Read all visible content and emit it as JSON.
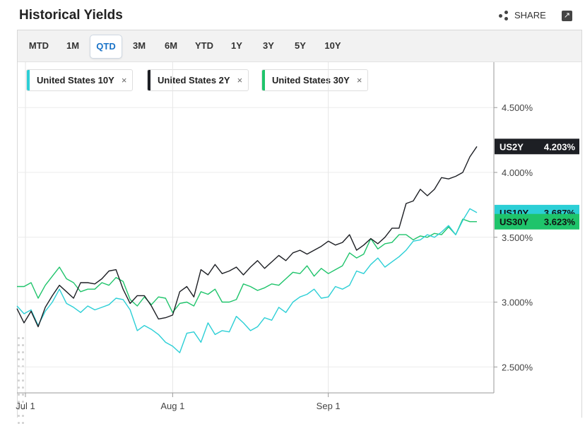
{
  "header": {
    "title": "Historical Yields",
    "share_label": "SHARE"
  },
  "tabs": [
    {
      "label": "MTD",
      "active": false
    },
    {
      "label": "1M",
      "active": false
    },
    {
      "label": "QTD",
      "active": true
    },
    {
      "label": "3M",
      "active": false
    },
    {
      "label": "6M",
      "active": false
    },
    {
      "label": "YTD",
      "active": false
    },
    {
      "label": "1Y",
      "active": false
    },
    {
      "label": "3Y",
      "active": false
    },
    {
      "label": "5Y",
      "active": false
    },
    {
      "label": "10Y",
      "active": false
    }
  ],
  "legend_chips": [
    {
      "label": "United States 10Y",
      "color": "#2ccfd6",
      "close": "×"
    },
    {
      "label": "United States 2Y",
      "color": "#1d1f24",
      "close": "×"
    },
    {
      "label": "United States 30Y",
      "color": "#1fc46b",
      "close": "×"
    }
  ],
  "chart_data": {
    "type": "line",
    "title": "Historical Yields",
    "x_ticks": [
      "Jul 1",
      "Aug 1",
      "Sep 1"
    ],
    "y_ticks": [
      "2.500%",
      "3.000%",
      "3.500%",
      "4.000%",
      "4.500%"
    ],
    "ylim": [
      2.3,
      4.85
    ],
    "grid": true,
    "series": [
      {
        "name": "US2Y",
        "color": "#1d1f24",
        "last_label": "4.203%",
        "values": [
          2.95,
          2.84,
          2.93,
          2.81,
          2.96,
          3.05,
          3.13,
          3.08,
          3.03,
          3.15,
          3.15,
          3.14,
          3.18,
          3.24,
          3.25,
          3.1,
          2.99,
          3.05,
          3.05,
          2.97,
          2.87,
          2.88,
          2.9,
          3.08,
          3.12,
          3.04,
          3.25,
          3.21,
          3.29,
          3.22,
          3.24,
          3.27,
          3.21,
          3.27,
          3.32,
          3.26,
          3.31,
          3.36,
          3.32,
          3.38,
          3.4,
          3.37,
          3.4,
          3.43,
          3.47,
          3.44,
          3.46,
          3.52,
          3.4,
          3.44,
          3.49,
          3.45,
          3.5,
          3.57,
          3.57,
          3.76,
          3.78,
          3.87,
          3.82,
          3.87,
          3.96,
          3.95,
          3.97,
          4.0,
          4.12,
          4.2
        ]
      },
      {
        "name": "US10Y",
        "color": "#2ccfd6",
        "last_label": "3.687%",
        "values": [
          2.97,
          2.91,
          2.94,
          2.82,
          2.93,
          3.0,
          3.1,
          2.99,
          2.96,
          2.92,
          2.97,
          2.94,
          2.96,
          2.98,
          3.03,
          3.02,
          2.94,
          2.78,
          2.82,
          2.79,
          2.75,
          2.69,
          2.66,
          2.61,
          2.76,
          2.77,
          2.69,
          2.84,
          2.75,
          2.78,
          2.77,
          2.89,
          2.84,
          2.78,
          2.81,
          2.88,
          2.86,
          2.96,
          2.92,
          3.0,
          3.04,
          3.06,
          3.1,
          3.03,
          3.04,
          3.12,
          3.1,
          3.13,
          3.24,
          3.22,
          3.29,
          3.34,
          3.27,
          3.31,
          3.35,
          3.4,
          3.47,
          3.48,
          3.52,
          3.5,
          3.54,
          3.59,
          3.52,
          3.63,
          3.72,
          3.69
        ]
      },
      {
        "name": "US30Y",
        "color": "#1fc46b",
        "last_label": "3.623%",
        "values": [
          3.12,
          3.12,
          3.15,
          3.03,
          3.13,
          3.2,
          3.27,
          3.18,
          3.15,
          3.08,
          3.1,
          3.1,
          3.15,
          3.13,
          3.19,
          3.16,
          3.02,
          2.97,
          3.04,
          2.98,
          3.04,
          3.03,
          2.92,
          2.99,
          3.0,
          2.97,
          3.08,
          3.06,
          3.1,
          3.0,
          3.0,
          3.02,
          3.14,
          3.12,
          3.09,
          3.11,
          3.14,
          3.13,
          3.18,
          3.23,
          3.22,
          3.28,
          3.2,
          3.26,
          3.22,
          3.25,
          3.28,
          3.38,
          3.34,
          3.37,
          3.49,
          3.41,
          3.45,
          3.46,
          3.52,
          3.52,
          3.48,
          3.51,
          3.5,
          3.53,
          3.52,
          3.58,
          3.52,
          3.64,
          3.62,
          3.62
        ]
      }
    ]
  }
}
